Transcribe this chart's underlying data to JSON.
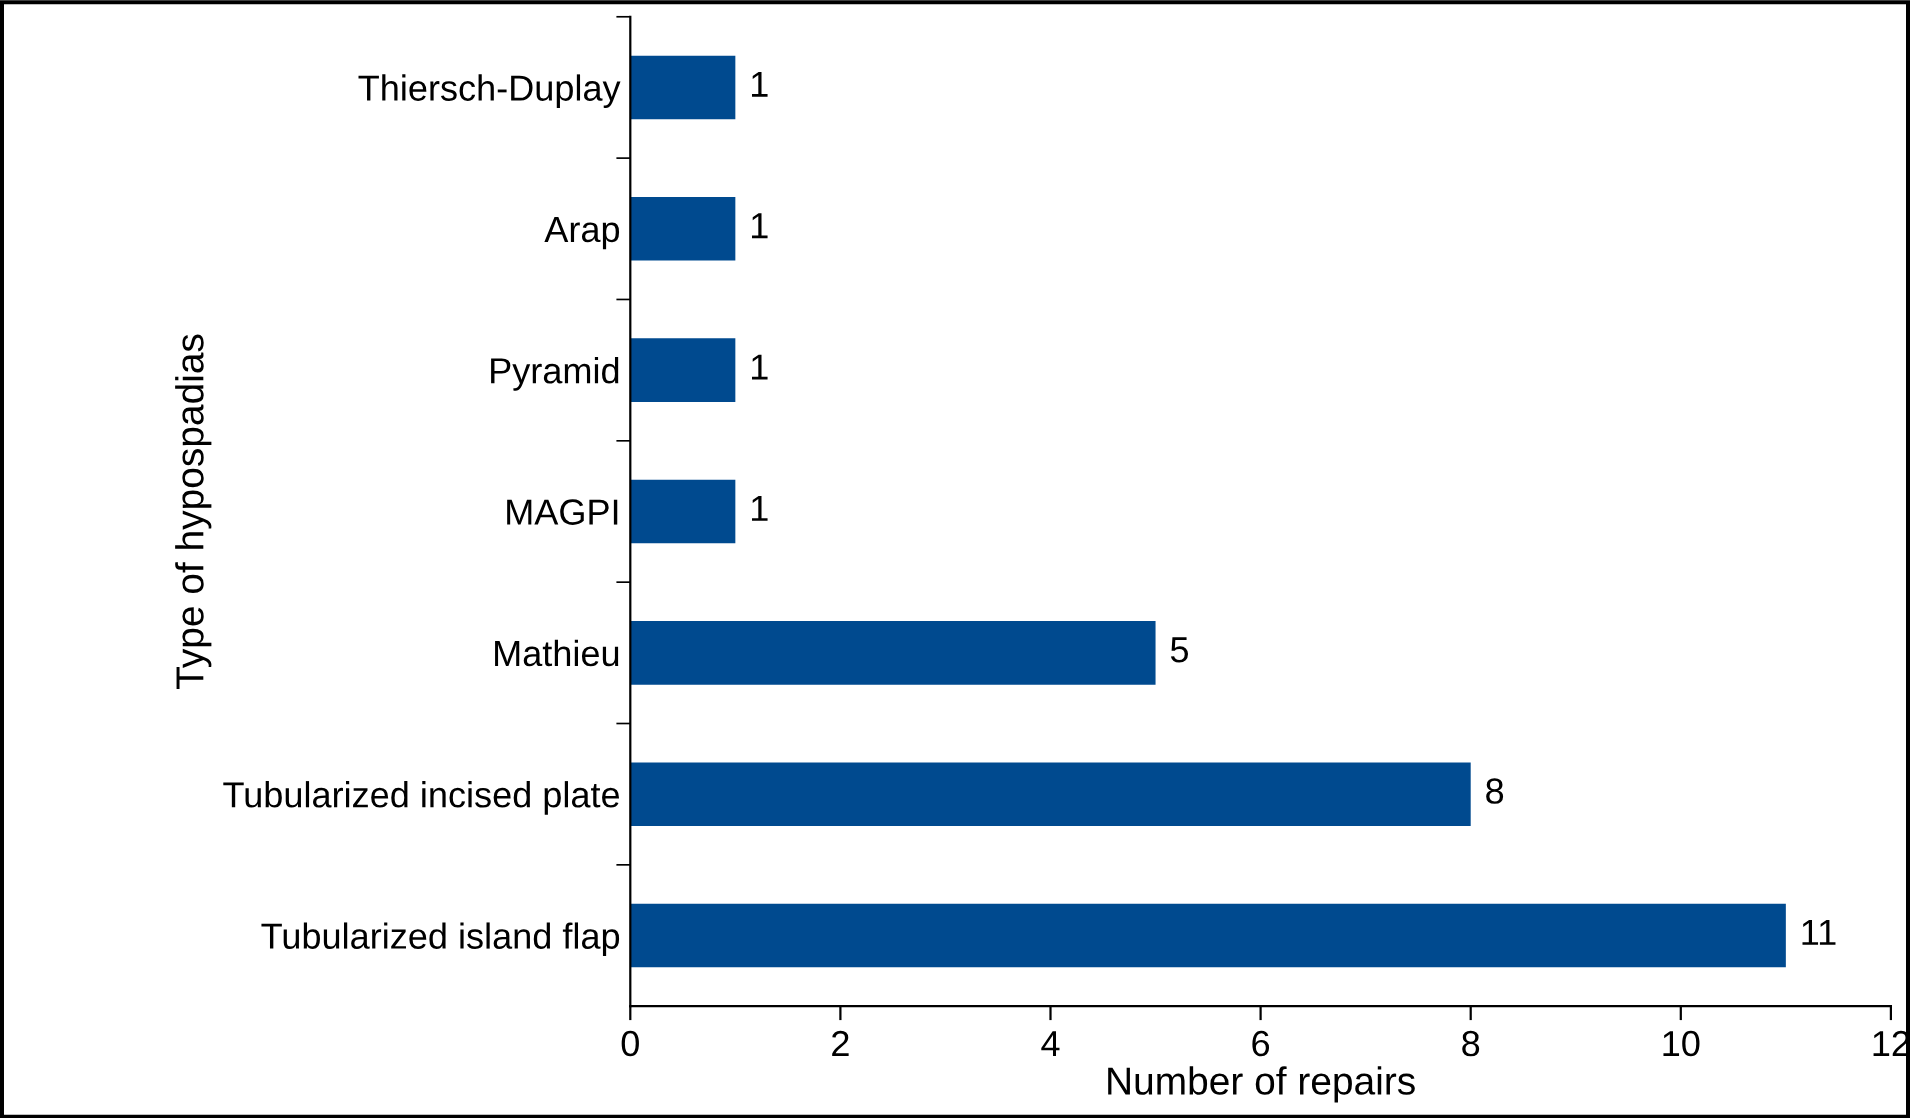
{
  "chart_data": {
    "type": "bar",
    "orientation": "horizontal",
    "xlabel": "Number of repairs",
    "ylabel": "Type of hypospadias",
    "categories": [
      "Thiersch-Duplay",
      "Arap",
      "Pyramid",
      "MAGPI",
      "Mathieu",
      "Tubularized incised plate",
      "Tubularized island flap"
    ],
    "values": [
      1,
      1,
      1,
      1,
      5,
      8,
      11
    ],
    "color": "#004a8f",
    "xlim": [
      0,
      12
    ],
    "xticks": [
      0,
      2,
      4,
      6,
      8,
      10,
      12
    ],
    "data_labels": true,
    "grid": false,
    "legend": false
  }
}
